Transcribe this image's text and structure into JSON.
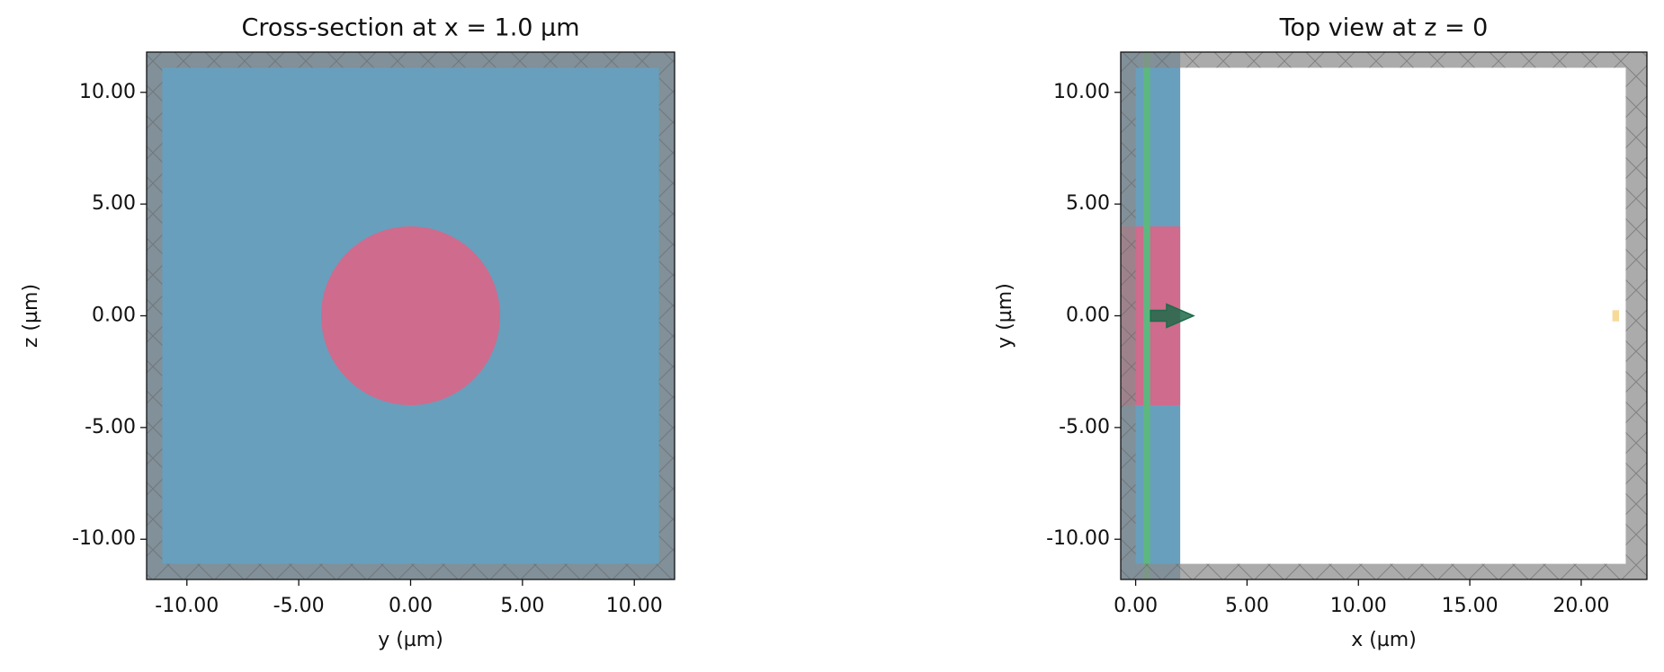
{
  "chart_data": [
    {
      "type": "geometry",
      "title": "Cross-section at x = 1.0 µm",
      "xlabel": "y (µm)",
      "ylabel": "z (µm)",
      "xlim": [
        -11.8,
        11.8
      ],
      "ylim": [
        -11.8,
        11.8
      ],
      "xticks": [
        {
          "value": -10,
          "label": "-10.00"
        },
        {
          "value": -5,
          "label": "-5.00"
        },
        {
          "value": 0,
          "label": "0.00"
        },
        {
          "value": 5,
          "label": "5.00"
        },
        {
          "value": 10,
          "label": "10.00"
        }
      ],
      "yticks": [
        {
          "value": -10,
          "label": "-10.00"
        },
        {
          "value": -5,
          "label": "-5.00"
        },
        {
          "value": 0,
          "label": "0.00"
        },
        {
          "value": 5,
          "label": "5.00"
        },
        {
          "value": 10,
          "label": "10.00"
        }
      ],
      "rects": [
        {
          "x": [
            -11.8,
            11.8
          ],
          "y": [
            -11.8,
            11.8
          ],
          "color": "#689fbd"
        }
      ],
      "circles": [
        {
          "center": [
            0,
            0
          ],
          "r": 4,
          "color": "#cf6b8d"
        }
      ],
      "pml": [
        {
          "x": [
            -11.8,
            -11.1
          ],
          "y": [
            -11.8,
            11.8
          ]
        },
        {
          "x": [
            11.1,
            11.8
          ],
          "y": [
            -11.8,
            11.8
          ]
        },
        {
          "x": [
            -11.1,
            11.1
          ],
          "y": [
            11.1,
            11.8
          ]
        },
        {
          "x": [
            -11.1,
            11.1
          ],
          "y": [
            -11.8,
            -11.1
          ]
        }
      ],
      "pml_color": "#8a8a8a"
    },
    {
      "type": "geometry",
      "title": "Top view at z = 0",
      "xlabel": "x (µm)",
      "ylabel": "y (µm)",
      "xlim": [
        -0.67,
        22.95
      ],
      "ylim": [
        -11.8,
        11.8
      ],
      "xticks": [
        {
          "value": 0,
          "label": "0.00"
        },
        {
          "value": 5,
          "label": "5.00"
        },
        {
          "value": 10,
          "label": "10.00"
        },
        {
          "value": 15,
          "label": "15.00"
        },
        {
          "value": 20,
          "label": "20.00"
        }
      ],
      "yticks": [
        {
          "value": -10,
          "label": "-10.00"
        },
        {
          "value": -5,
          "label": "-5.00"
        },
        {
          "value": 0,
          "label": "0.00"
        },
        {
          "value": 5,
          "label": "5.00"
        },
        {
          "value": 10,
          "label": "10.00"
        }
      ],
      "rects": [
        {
          "x": [
            -0.67,
            2
          ],
          "y": [
            -11.8,
            11.8
          ],
          "color": "#689fbd"
        },
        {
          "x": [
            -0.67,
            2
          ],
          "y": [
            -4,
            4
          ],
          "color": "#cf6b8d"
        },
        {
          "x": [
            0.35,
            0.65
          ],
          "y": [
            -11.8,
            11.8
          ],
          "color": "#5cb87f"
        },
        {
          "x": [
            21.4,
            21.7
          ],
          "y": [
            -0.25,
            0.25
          ],
          "color": "#f7d99a"
        }
      ],
      "circles": [],
      "pml": [
        {
          "x": [
            -0.67,
            0
          ],
          "y": [
            -11.8,
            11.8
          ]
        },
        {
          "x": [
            22,
            22.95
          ],
          "y": [
            -11.8,
            11.8
          ]
        },
        {
          "x": [
            0,
            22
          ],
          "y": [
            11.1,
            11.8
          ]
        },
        {
          "x": [
            0,
            22
          ],
          "y": [
            -11.8,
            -11.1
          ]
        }
      ],
      "pml_color": "#8a8a8a",
      "arrows": [
        {
          "x": [
            0.67,
            2.6
          ],
          "y": [
            0,
            0
          ],
          "color": "#1f6b4a"
        }
      ]
    }
  ]
}
